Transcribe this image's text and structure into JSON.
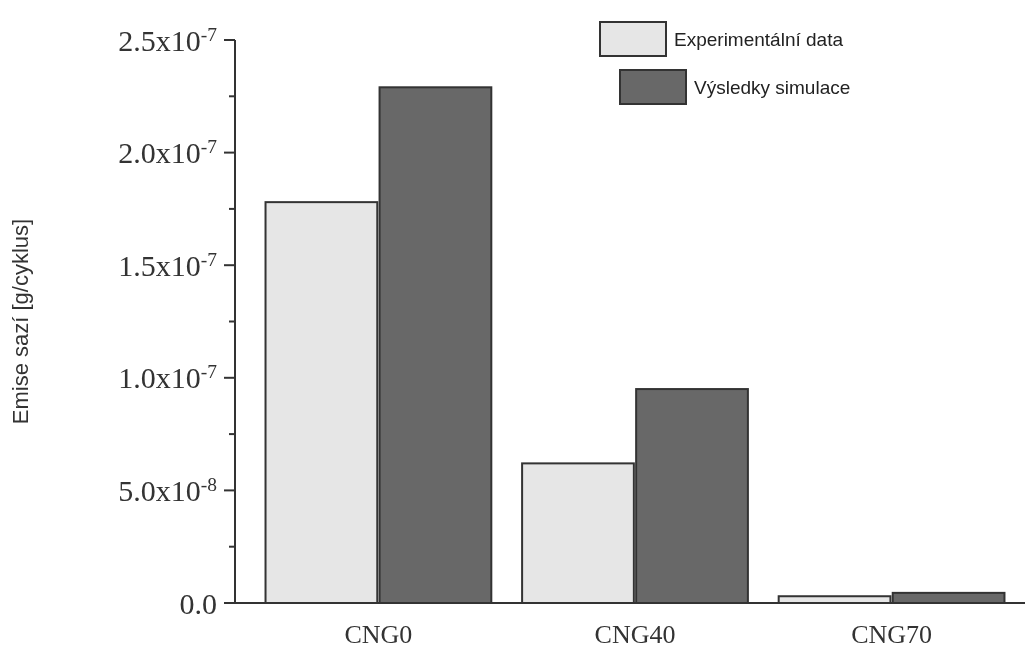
{
  "chart_data": {
    "type": "bar",
    "ylabel": "Emise sazí [g/cyklus]",
    "categories": [
      "CNG0",
      "CNG40",
      "CNG70"
    ],
    "series": [
      {
        "name": "Experimentální data",
        "color": "#e6e6e6",
        "values": [
          1.78e-07,
          6.2e-08,
          3e-09
        ]
      },
      {
        "name": "Výsledky simulace",
        "color": "#686868",
        "values": [
          2.29e-07,
          9.5e-08,
          4.5e-09
        ]
      }
    ],
    "ylim": [
      0,
      2.5e-07
    ],
    "yticks": [
      {
        "value": 0,
        "label": "0.0"
      },
      {
        "value": 2.5e-08,
        "label": null
      },
      {
        "value": 5e-08,
        "label": "5.0x10$^{-8}$"
      },
      {
        "value": 7.5e-08,
        "label": null
      },
      {
        "value": 1e-07,
        "label": "1.0x10$^{-7}$"
      },
      {
        "value": 1.25e-07,
        "label": null
      },
      {
        "value": 1.5e-07,
        "label": "1.5x10$^{-7}$"
      },
      {
        "value": 1.75e-07,
        "label": null
      },
      {
        "value": 2e-07,
        "label": "2.0x10$^{-7}$"
      },
      {
        "value": 2.25e-07,
        "label": null
      },
      {
        "value": 2.5e-07,
        "label": "2.5x10$^{-7}$"
      }
    ],
    "legend": "top right",
    "grid": false
  }
}
